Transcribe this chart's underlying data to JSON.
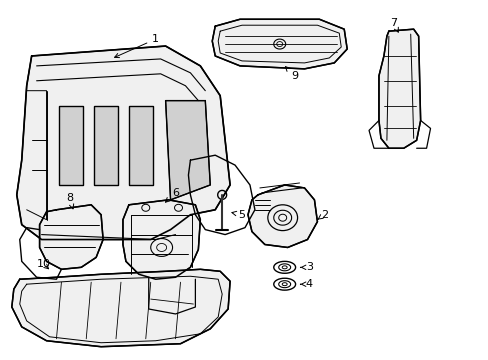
{
  "background_color": "#ffffff",
  "line_color": "#000000",
  "line_width": 1.0,
  "label_fontsize": 8,
  "fig_width": 4.89,
  "fig_height": 3.6,
  "dpi": 100
}
